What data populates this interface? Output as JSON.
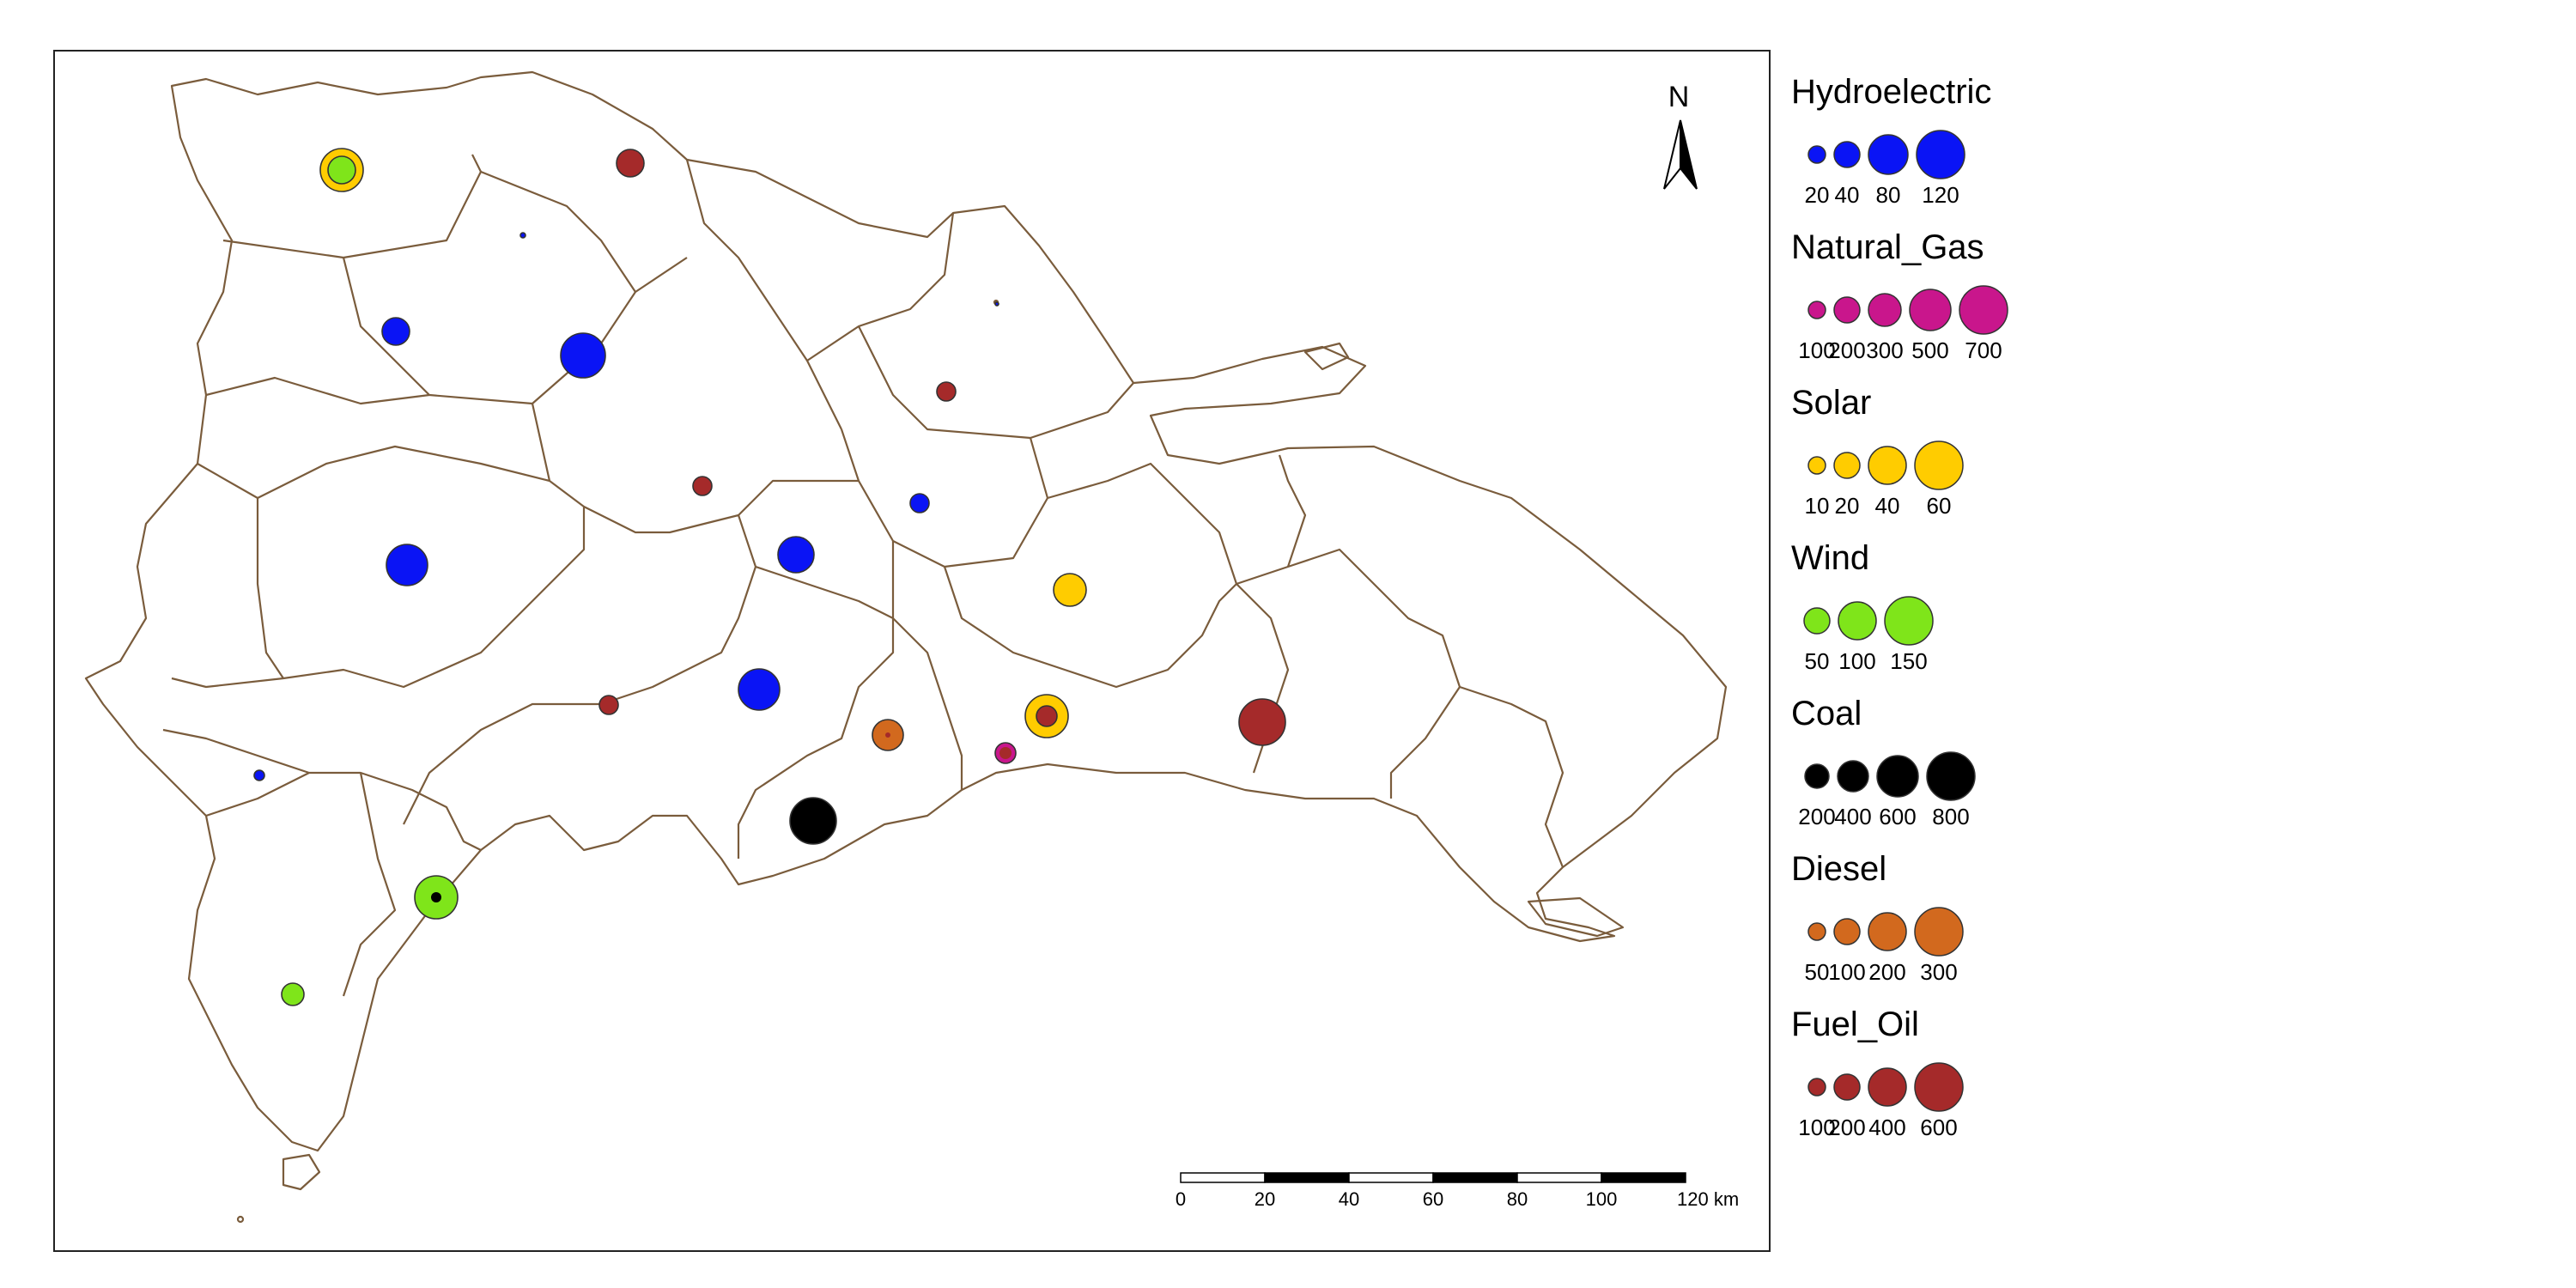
{
  "colors": {
    "Hydroelectric": "#0a14f5",
    "Natural_Gas": "#c9168c",
    "Solar": "#ffcc00",
    "Wind": "#7fe51a",
    "Coal": "#000000",
    "Diesel": "#d2691e",
    "Fuel_Oil": "#a52a2a",
    "boundary": "#7a5c3c"
  },
  "north_arrow": {
    "label": "N",
    "icon": "north-arrow-icon"
  },
  "scale_bar": {
    "ticks": [
      "0",
      "20",
      "40",
      "60",
      "80",
      "100",
      "120 km"
    ]
  },
  "legend": [
    {
      "key": "Hydroelectric",
      "title": "Hydroelectric",
      "labels": [
        "20",
        "40",
        "80",
        "120"
      ],
      "values": [
        20,
        40,
        80,
        120
      ]
    },
    {
      "key": "Natural_Gas",
      "title": "Natural_Gas",
      "labels": [
        "100",
        "200",
        "300",
        "500",
        "700"
      ],
      "values": [
        100,
        200,
        300,
        500,
        700
      ]
    },
    {
      "key": "Solar",
      "title": "Solar",
      "labels": [
        "10",
        "20",
        "40",
        "60"
      ],
      "values": [
        10,
        20,
        40,
        60
      ]
    },
    {
      "key": "Wind",
      "title": "Wind",
      "labels": [
        "50",
        "100",
        "150"
      ],
      "values": [
        50,
        100,
        150
      ]
    },
    {
      "key": "Coal",
      "title": "Coal",
      "labels": [
        "200",
        "400",
        "600",
        "800"
      ],
      "values": [
        200,
        400,
        600,
        800
      ]
    },
    {
      "key": "Diesel",
      "title": "Diesel",
      "labels": [
        "50",
        "100",
        "200",
        "300"
      ],
      "values": [
        50,
        100,
        200,
        300
      ]
    },
    {
      "key": "Fuel_Oil",
      "title": "Fuel_Oil",
      "labels": [
        "100",
        "200",
        "400",
        "600"
      ],
      "values": [
        100,
        200,
        400,
        600
      ]
    }
  ]
}
